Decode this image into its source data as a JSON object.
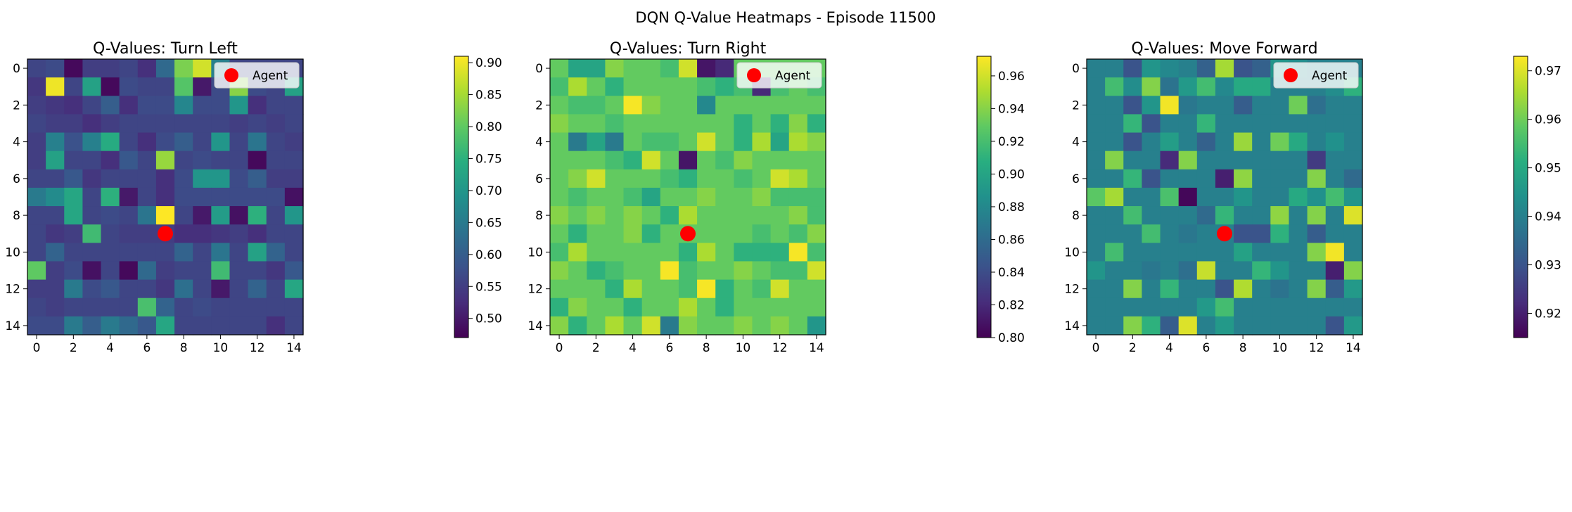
{
  "figure_title": "DQN Q-Value Heatmaps - Episode 11500",
  "legend_label": "Agent",
  "colors": {
    "agent_marker": "#ff0000",
    "colormap": "viridis",
    "colormap_stops": [
      "#440154",
      "#472d7b",
      "#3b528b",
      "#2c728e",
      "#21918c",
      "#28ae80",
      "#5ec962",
      "#addc30",
      "#fde725"
    ]
  },
  "chart_data": [
    {
      "type": "heatmap",
      "title": "Q-Values: Turn Left",
      "x_ticks": [
        0,
        2,
        4,
        6,
        8,
        10,
        12,
        14
      ],
      "y_ticks": [
        0,
        2,
        4,
        6,
        8,
        10,
        12,
        14
      ],
      "xlim": [
        -0.5,
        14.5
      ],
      "ylim": [
        14.5,
        -0.5
      ],
      "agent": {
        "x": 7,
        "y": 9
      },
      "colorbar": {
        "min": 0.47,
        "max": 0.91,
        "ticks": [
          0.5,
          0.55,
          0.6,
          0.65,
          0.7,
          0.75,
          0.8,
          0.85,
          0.9
        ]
      },
      "values": [
        [
          0.56,
          0.57,
          0.48,
          0.55,
          0.55,
          0.56,
          0.53,
          0.62,
          0.82,
          0.88,
          0.66,
          0.56,
          0.56,
          0.56,
          0.56
        ],
        [
          0.54,
          0.9,
          0.56,
          0.72,
          0.48,
          0.57,
          0.56,
          0.56,
          0.79,
          0.5,
          0.57,
          0.83,
          0.57,
          0.56,
          0.72
        ],
        [
          0.55,
          0.54,
          0.53,
          0.56,
          0.6,
          0.53,
          0.57,
          0.57,
          0.67,
          0.57,
          0.57,
          0.7,
          0.53,
          0.56,
          0.56
        ],
        [
          0.56,
          0.55,
          0.55,
          0.53,
          0.55,
          0.56,
          0.56,
          0.56,
          0.56,
          0.56,
          0.56,
          0.55,
          0.56,
          0.55,
          0.56
        ],
        [
          0.55,
          0.66,
          0.58,
          0.66,
          0.74,
          0.56,
          0.53,
          0.57,
          0.6,
          0.56,
          0.7,
          0.56,
          0.64,
          0.56,
          0.55
        ],
        [
          0.55,
          0.72,
          0.56,
          0.56,
          0.53,
          0.59,
          0.56,
          0.84,
          0.56,
          0.57,
          0.56,
          0.56,
          0.48,
          0.56,
          0.56
        ],
        [
          0.56,
          0.56,
          0.59,
          0.54,
          0.56,
          0.56,
          0.56,
          0.53,
          0.57,
          0.7,
          0.7,
          0.57,
          0.6,
          0.55,
          0.55
        ],
        [
          0.65,
          0.68,
          0.73,
          0.56,
          0.75,
          0.5,
          0.56,
          0.53,
          0.57,
          0.57,
          0.57,
          0.57,
          0.57,
          0.57,
          0.49
        ],
        [
          0.56,
          0.56,
          0.73,
          0.56,
          0.57,
          0.56,
          0.64,
          0.91,
          0.56,
          0.5,
          0.71,
          0.49,
          0.75,
          0.56,
          0.7
        ],
        [
          0.56,
          0.54,
          0.55,
          0.77,
          0.56,
          0.55,
          0.55,
          0.55,
          0.53,
          0.53,
          0.54,
          0.55,
          0.53,
          0.56,
          0.56
        ],
        [
          0.56,
          0.61,
          0.56,
          0.56,
          0.56,
          0.56,
          0.56,
          0.56,
          0.61,
          0.56,
          0.64,
          0.56,
          0.72,
          0.61,
          0.56
        ],
        [
          0.8,
          0.55,
          0.57,
          0.49,
          0.56,
          0.48,
          0.62,
          0.55,
          0.56,
          0.56,
          0.77,
          0.56,
          0.56,
          0.54,
          0.59
        ],
        [
          0.55,
          0.55,
          0.65,
          0.57,
          0.59,
          0.56,
          0.56,
          0.54,
          0.63,
          0.56,
          0.5,
          0.56,
          0.61,
          0.56,
          0.73
        ],
        [
          0.56,
          0.55,
          0.56,
          0.56,
          0.56,
          0.56,
          0.78,
          0.61,
          0.56,
          0.57,
          0.56,
          0.56,
          0.56,
          0.56,
          0.56
        ],
        [
          0.57,
          0.57,
          0.65,
          0.6,
          0.65,
          0.62,
          0.59,
          0.73,
          0.56,
          0.56,
          0.56,
          0.56,
          0.56,
          0.53,
          0.56
        ]
      ]
    },
    {
      "type": "heatmap",
      "title": "Q-Values: Turn Right",
      "x_ticks": [
        0,
        2,
        4,
        6,
        8,
        10,
        12,
        14
      ],
      "y_ticks": [
        0,
        2,
        4,
        6,
        8,
        10,
        12,
        14
      ],
      "xlim": [
        -0.5,
        14.5
      ],
      "ylim": [
        14.5,
        -0.5
      ],
      "agent": {
        "x": 7,
        "y": 9
      },
      "colorbar": {
        "min": 0.8,
        "max": 0.972,
        "ticks": [
          0.8,
          0.82,
          0.84,
          0.86,
          0.88,
          0.9,
          0.92,
          0.94,
          0.96
        ]
      },
      "values": [
        [
          0.93,
          0.9,
          0.9,
          0.94,
          0.93,
          0.93,
          0.92,
          0.96,
          0.81,
          0.82,
          0.93,
          0.93,
          0.93,
          0.93,
          0.93
        ],
        [
          0.92,
          0.95,
          0.93,
          0.91,
          0.93,
          0.93,
          0.93,
          0.93,
          0.92,
          0.91,
          0.92,
          0.82,
          0.92,
          0.93,
          0.92
        ],
        [
          0.93,
          0.92,
          0.92,
          0.93,
          0.97,
          0.94,
          0.93,
          0.93,
          0.88,
          0.93,
          0.93,
          0.93,
          0.93,
          0.93,
          0.93
        ],
        [
          0.94,
          0.93,
          0.93,
          0.92,
          0.93,
          0.93,
          0.93,
          0.93,
          0.93,
          0.93,
          0.91,
          0.93,
          0.91,
          0.94,
          0.91
        ],
        [
          0.93,
          0.87,
          0.9,
          0.87,
          0.93,
          0.92,
          0.92,
          0.93,
          0.96,
          0.93,
          0.91,
          0.95,
          0.9,
          0.95,
          0.94
        ],
        [
          0.93,
          0.93,
          0.93,
          0.92,
          0.91,
          0.96,
          0.93,
          0.81,
          0.93,
          0.92,
          0.94,
          0.93,
          0.93,
          0.93,
          0.93
        ],
        [
          0.93,
          0.94,
          0.96,
          0.93,
          0.93,
          0.93,
          0.92,
          0.91,
          0.93,
          0.93,
          0.92,
          0.93,
          0.96,
          0.95,
          0.93
        ],
        [
          0.93,
          0.92,
          0.93,
          0.93,
          0.92,
          0.9,
          0.93,
          0.93,
          0.94,
          0.93,
          0.93,
          0.94,
          0.92,
          0.92,
          0.92
        ],
        [
          0.94,
          0.93,
          0.94,
          0.93,
          0.94,
          0.93,
          0.91,
          0.95,
          0.93,
          0.93,
          0.93,
          0.93,
          0.93,
          0.94,
          0.92
        ],
        [
          0.93,
          0.91,
          0.93,
          0.93,
          0.94,
          0.91,
          0.93,
          0.93,
          0.93,
          0.93,
          0.93,
          0.92,
          0.93,
          0.92,
          0.94
        ],
        [
          0.92,
          0.95,
          0.93,
          0.93,
          0.93,
          0.93,
          0.93,
          0.91,
          0.95,
          0.93,
          0.91,
          0.91,
          0.91,
          0.97,
          0.92
        ],
        [
          0.94,
          0.93,
          0.91,
          0.92,
          0.93,
          0.93,
          0.97,
          0.92,
          0.93,
          0.93,
          0.94,
          0.93,
          0.92,
          0.92,
          0.96
        ],
        [
          0.93,
          0.93,
          0.93,
          0.91,
          0.95,
          0.93,
          0.93,
          0.92,
          0.97,
          0.91,
          0.93,
          0.92,
          0.96,
          0.93,
          0.93
        ],
        [
          0.91,
          0.94,
          0.93,
          0.93,
          0.91,
          0.93,
          0.93,
          0.95,
          0.93,
          0.91,
          0.93,
          0.93,
          0.93,
          0.93,
          0.93
        ],
        [
          0.94,
          0.91,
          0.93,
          0.95,
          0.93,
          0.96,
          0.87,
          0.94,
          0.93,
          0.93,
          0.94,
          0.93,
          0.94,
          0.93,
          0.89
        ]
      ]
    },
    {
      "type": "heatmap",
      "title": "Q-Values: Move Forward",
      "x_ticks": [
        0,
        2,
        4,
        6,
        8,
        10,
        12,
        14
      ],
      "y_ticks": [
        0,
        2,
        4,
        6,
        8,
        10,
        12,
        14
      ],
      "xlim": [
        -0.5,
        14.5
      ],
      "ylim": [
        14.5,
        -0.5
      ],
      "agent": {
        "x": 7,
        "y": 9
      },
      "colorbar": {
        "min": 0.915,
        "max": 0.973,
        "ticks": [
          0.92,
          0.93,
          0.94,
          0.95,
          0.96,
          0.97
        ]
      },
      "values": [
        [
          0.94,
          0.94,
          0.93,
          0.945,
          0.942,
          0.94,
          0.933,
          0.965,
          0.93,
          0.933,
          0.945,
          0.943,
          0.94,
          0.94,
          0.94
        ],
        [
          0.94,
          0.955,
          0.943,
          0.962,
          0.937,
          0.946,
          0.955,
          0.942,
          0.95,
          0.95,
          0.94,
          0.94,
          0.94,
          0.943,
          0.952
        ],
        [
          0.94,
          0.94,
          0.93,
          0.945,
          0.972,
          0.938,
          0.94,
          0.94,
          0.932,
          0.94,
          0.94,
          0.96,
          0.936,
          0.94,
          0.94
        ],
        [
          0.94,
          0.94,
          0.953,
          0.93,
          0.94,
          0.94,
          0.953,
          0.94,
          0.94,
          0.94,
          0.94,
          0.94,
          0.94,
          0.94,
          0.94
        ],
        [
          0.94,
          0.94,
          0.93,
          0.94,
          0.947,
          0.94,
          0.933,
          0.94,
          0.964,
          0.94,
          0.96,
          0.95,
          0.94,
          0.944,
          0.94
        ],
        [
          0.94,
          0.962,
          0.94,
          0.94,
          0.922,
          0.962,
          0.94,
          0.94,
          0.94,
          0.94,
          0.94,
          0.94,
          0.925,
          0.94,
          0.94
        ],
        [
          0.94,
          0.94,
          0.953,
          0.93,
          0.94,
          0.94,
          0.94,
          0.92,
          0.963,
          0.94,
          0.94,
          0.94,
          0.962,
          0.94,
          0.935
        ],
        [
          0.958,
          0.965,
          0.94,
          0.94,
          0.956,
          0.916,
          0.94,
          0.94,
          0.945,
          0.94,
          0.94,
          0.95,
          0.944,
          0.955,
          0.945
        ],
        [
          0.94,
          0.94,
          0.955,
          0.94,
          0.94,
          0.94,
          0.935,
          0.953,
          0.94,
          0.94,
          0.963,
          0.94,
          0.962,
          0.94,
          0.97
        ],
        [
          0.94,
          0.94,
          0.94,
          0.955,
          0.94,
          0.938,
          0.94,
          0.94,
          0.93,
          0.93,
          0.952,
          0.94,
          0.932,
          0.94,
          0.94
        ],
        [
          0.94,
          0.955,
          0.94,
          0.94,
          0.94,
          0.94,
          0.94,
          0.94,
          0.948,
          0.94,
          0.94,
          0.94,
          0.962,
          0.972,
          0.94
        ],
        [
          0.945,
          0.94,
          0.94,
          0.938,
          0.94,
          0.936,
          0.968,
          0.94,
          0.94,
          0.953,
          0.945,
          0.94,
          0.94,
          0.92,
          0.962
        ],
        [
          0.94,
          0.94,
          0.962,
          0.94,
          0.953,
          0.94,
          0.94,
          0.93,
          0.966,
          0.94,
          0.937,
          0.94,
          0.962,
          0.932,
          0.946
        ],
        [
          0.94,
          0.94,
          0.94,
          0.94,
          0.94,
          0.94,
          0.946,
          0.955,
          0.94,
          0.94,
          0.94,
          0.94,
          0.94,
          0.94,
          0.94
        ],
        [
          0.94,
          0.94,
          0.962,
          0.952,
          0.932,
          0.97,
          0.94,
          0.946,
          0.94,
          0.94,
          0.94,
          0.94,
          0.94,
          0.93,
          0.946
        ]
      ]
    }
  ]
}
